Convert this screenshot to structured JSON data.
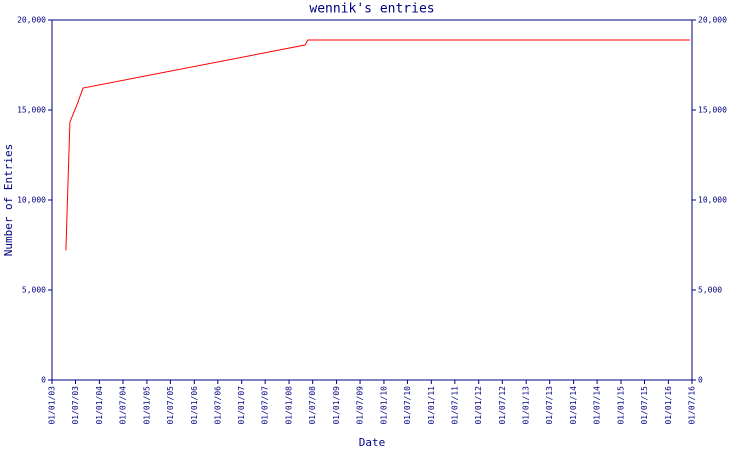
{
  "chart_data": {
    "type": "line",
    "title": "wennik's entries",
    "x_label": "Date",
    "y_label": "Number of Entries",
    "x": [
      "2003-04-18",
      "2003-05-19",
      "2003-07-12",
      "2003-08-28",
      "2008-05-03",
      "2008-05-25",
      "2016-06-16"
    ],
    "series": [
      {
        "name": "entries",
        "color": "#ff0000",
        "values": [
          7200,
          14330,
          15280,
          16220,
          18610,
          18890,
          18890
        ]
      }
    ],
    "xlim": [
      "2003-01-01",
      "2016-07-01"
    ],
    "xticks": [
      {
        "value": "2003-01-01",
        "label": "01/01/03"
      },
      {
        "value": "2003-07-01",
        "label": "01/07/03"
      },
      {
        "value": "2004-01-01",
        "label": "01/01/04"
      },
      {
        "value": "2004-07-01",
        "label": "01/07/04"
      },
      {
        "value": "2005-01-01",
        "label": "01/01/05"
      },
      {
        "value": "2005-07-01",
        "label": "01/07/05"
      },
      {
        "value": "2006-01-01",
        "label": "01/01/06"
      },
      {
        "value": "2006-07-01",
        "label": "01/07/06"
      },
      {
        "value": "2007-01-01",
        "label": "01/01/07"
      },
      {
        "value": "2007-07-01",
        "label": "01/07/07"
      },
      {
        "value": "2008-01-01",
        "label": "01/01/08"
      },
      {
        "value": "2008-07-01",
        "label": "01/07/08"
      },
      {
        "value": "2009-01-01",
        "label": "01/01/09"
      },
      {
        "value": "2009-07-01",
        "label": "01/07/09"
      },
      {
        "value": "2010-01-01",
        "label": "01/01/10"
      },
      {
        "value": "2010-07-01",
        "label": "01/07/10"
      },
      {
        "value": "2011-01-01",
        "label": "01/01/11"
      },
      {
        "value": "2011-07-01",
        "label": "01/07/11"
      },
      {
        "value": "2012-01-01",
        "label": "01/01/12"
      },
      {
        "value": "2012-07-01",
        "label": "01/07/12"
      },
      {
        "value": "2013-01-01",
        "label": "01/01/13"
      },
      {
        "value": "2013-07-01",
        "label": "01/07/13"
      },
      {
        "value": "2014-01-01",
        "label": "01/01/14"
      },
      {
        "value": "2014-07-01",
        "label": "01/07/14"
      },
      {
        "value": "2015-01-01",
        "label": "01/01/15"
      },
      {
        "value": "2015-07-01",
        "label": "01/07/15"
      },
      {
        "value": "2016-01-01",
        "label": "01/01/16"
      },
      {
        "value": "2016-07-01",
        "label": "01/07/16"
      }
    ],
    "ylim": [
      0,
      20000
    ],
    "yticks": [
      0,
      {
        "value": 5000,
        "label": "5,000"
      },
      {
        "value": 10000,
        "label": "10,000"
      },
      {
        "value": 15000,
        "label": "15,000"
      },
      {
        "value": 20000,
        "label": "20,000"
      }
    ],
    "y2lim": [
      0,
      20000
    ],
    "y2ticks": [
      0,
      {
        "value": 5000,
        "label": "5,000"
      },
      {
        "value": 10000,
        "label": "10,000"
      },
      {
        "value": 15000,
        "label": "15,000"
      },
      {
        "value": 20000,
        "label": "20,000"
      }
    ],
    "axis_color": "#000080"
  }
}
